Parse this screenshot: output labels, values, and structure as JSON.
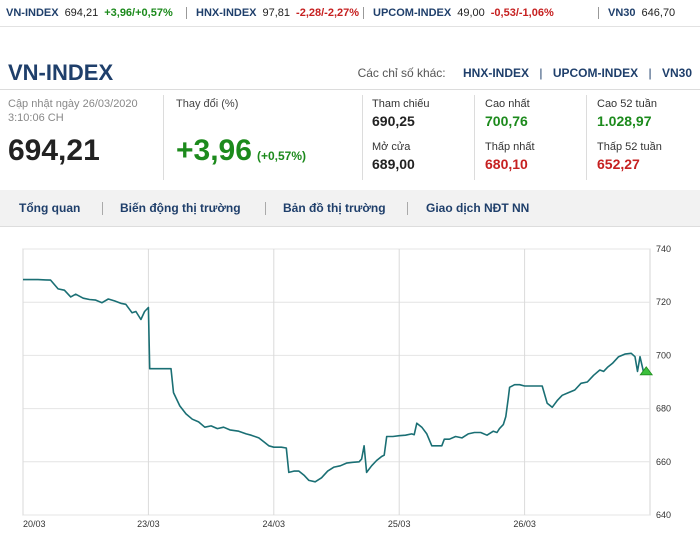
{
  "ticker": [
    {
      "name": "VN-INDEX",
      "value": "694,21",
      "change": "+3,96/+0,57%",
      "dir": "up"
    },
    {
      "name": "HNX-INDEX",
      "value": "97,81",
      "change": "-2,28/-2,27%",
      "dir": "down"
    },
    {
      "name": "UPCOM-INDEX",
      "value": "49,00",
      "change": "-0,53/-1,06%",
      "dir": "down"
    },
    {
      "name": "VN30",
      "value": "646,70",
      "change": "",
      "dir": "down"
    }
  ],
  "header": {
    "title": "VN-INDEX",
    "other_label": "Các chỉ số khác:",
    "other_links": [
      "HNX-INDEX",
      "UPCOM-INDEX",
      "VN30"
    ]
  },
  "summary": {
    "updated_label": "Cập nhật ngày 26/03/2020",
    "updated_time": "3:10:06 CH",
    "value": "694,21",
    "change_label": "Thay đổi (%)",
    "change": "+3,96",
    "change_pct": "(+0,57%)"
  },
  "stats": {
    "ref_label": "Tham chiếu",
    "ref": "690,25",
    "open_label": "Mở cửa",
    "open": "689,00",
    "high_label": "Cao nhất",
    "high": "700,76",
    "low_label": "Thấp nhất",
    "low": "680,10",
    "high52_label": "Cao 52 tuần",
    "high52": "1.028,97",
    "low52_label": "Thấp 52 tuần",
    "low52": "652,27"
  },
  "nav": {
    "tabs": [
      "Tổng quan",
      "Biến động thị trường",
      "Bản đồ thị trường",
      "Giao dịch NĐT NN"
    ]
  },
  "colors": {
    "line": "#1a6f74",
    "up": "#1c8a1c",
    "down": "#c62020",
    "brand": "#1f3f6b",
    "marker": "#3cbf3c"
  },
  "chart_data": {
    "type": "line",
    "x_ticks": [
      "20/03",
      "23/03",
      "24/03",
      "25/03",
      "26/03"
    ],
    "y_ticks": [
      640,
      660,
      680,
      700,
      720,
      740
    ],
    "ylim": [
      640,
      740
    ],
    "xlim": [
      0,
      5
    ],
    "grid": true,
    "y_axis_side": "right",
    "series": [
      {
        "values": [
          [
            0.0,
            728.5
          ],
          [
            0.06,
            728.5
          ],
          [
            0.12,
            728.5
          ],
          [
            0.18,
            728.4
          ],
          [
            0.22,
            728.3
          ],
          [
            0.28,
            725
          ],
          [
            0.33,
            724.5
          ],
          [
            0.38,
            722
          ],
          [
            0.42,
            723
          ],
          [
            0.48,
            721.5
          ],
          [
            0.53,
            721
          ],
          [
            0.58,
            720.8
          ],
          [
            0.63,
            719.8
          ],
          [
            0.68,
            721.2
          ],
          [
            0.73,
            720.5
          ],
          [
            0.78,
            719.6
          ],
          [
            0.82,
            719.2
          ],
          [
            0.87,
            716
          ],
          [
            0.9,
            716.5
          ],
          [
            0.94,
            713.5
          ],
          [
            0.97,
            716.5
          ],
          [
            1.0,
            718
          ],
          [
            1.01,
            695
          ],
          [
            1.1,
            695
          ],
          [
            1.18,
            695
          ],
          [
            1.2,
            686
          ],
          [
            1.25,
            681
          ],
          [
            1.3,
            678
          ],
          [
            1.35,
            676
          ],
          [
            1.4,
            675
          ],
          [
            1.45,
            673
          ],
          [
            1.5,
            673.5
          ],
          [
            1.55,
            672.5
          ],
          [
            1.6,
            673
          ],
          [
            1.65,
            672
          ],
          [
            1.72,
            671.5
          ],
          [
            1.78,
            670.5
          ],
          [
            1.82,
            670
          ],
          [
            1.88,
            669
          ],
          [
            1.92,
            667.5
          ],
          [
            1.96,
            666
          ],
          [
            2.0,
            665.5
          ],
          [
            2.06,
            665.5
          ],
          [
            2.1,
            665.2
          ],
          [
            2.12,
            656
          ],
          [
            2.16,
            656.5
          ],
          [
            2.2,
            656.5
          ],
          [
            2.24,
            655
          ],
          [
            2.28,
            653
          ],
          [
            2.33,
            652.5
          ],
          [
            2.38,
            654
          ],
          [
            2.43,
            656.5
          ],
          [
            2.48,
            658
          ],
          [
            2.53,
            658.5
          ],
          [
            2.58,
            659.5
          ],
          [
            2.63,
            659.8
          ],
          [
            2.68,
            660
          ],
          [
            2.7,
            661
          ],
          [
            2.72,
            666
          ],
          [
            2.74,
            656
          ],
          [
            2.78,
            658.5
          ],
          [
            2.82,
            660.5
          ],
          [
            2.86,
            662
          ],
          [
            2.88,
            662.5
          ],
          [
            2.9,
            669.5
          ],
          [
            2.95,
            669.5
          ],
          [
            3.0,
            669.8
          ],
          [
            3.05,
            670
          ],
          [
            3.1,
            670.5
          ],
          [
            3.12,
            670.2
          ],
          [
            3.14,
            674.5
          ],
          [
            3.18,
            673
          ],
          [
            3.22,
            670.5
          ],
          [
            3.26,
            666
          ],
          [
            3.3,
            666
          ],
          [
            3.34,
            666
          ],
          [
            3.36,
            668.5
          ],
          [
            3.4,
            668.5
          ],
          [
            3.45,
            669.5
          ],
          [
            3.5,
            669
          ],
          [
            3.55,
            670.5
          ],
          [
            3.6,
            671
          ],
          [
            3.65,
            671
          ],
          [
            3.7,
            670
          ],
          [
            3.75,
            671.5
          ],
          [
            3.78,
            671
          ],
          [
            3.8,
            672.5
          ],
          [
            3.83,
            674
          ],
          [
            3.85,
            677
          ],
          [
            3.87,
            684
          ],
          [
            3.88,
            688
          ],
          [
            3.92,
            689
          ],
          [
            3.96,
            689
          ],
          [
            4.0,
            688.5
          ],
          [
            4.05,
            688.5
          ],
          [
            4.1,
            688.5
          ],
          [
            4.14,
            688.5
          ],
          [
            4.18,
            682
          ],
          [
            4.22,
            680.5
          ],
          [
            4.26,
            683
          ],
          [
            4.3,
            685
          ],
          [
            4.35,
            686
          ],
          [
            4.4,
            687
          ],
          [
            4.45,
            689.5
          ],
          [
            4.5,
            690
          ],
          [
            4.55,
            692.5
          ],
          [
            4.6,
            694.5
          ],
          [
            4.63,
            694
          ],
          [
            4.66,
            695.5
          ],
          [
            4.7,
            697
          ],
          [
            4.75,
            699.5
          ],
          [
            4.8,
            700.5
          ],
          [
            4.85,
            700.8
          ],
          [
            4.88,
            699.5
          ],
          [
            4.9,
            694
          ],
          [
            4.92,
            699.5
          ],
          [
            4.95,
            693.5
          ],
          [
            4.97,
            694.2
          ]
        ]
      }
    ]
  }
}
